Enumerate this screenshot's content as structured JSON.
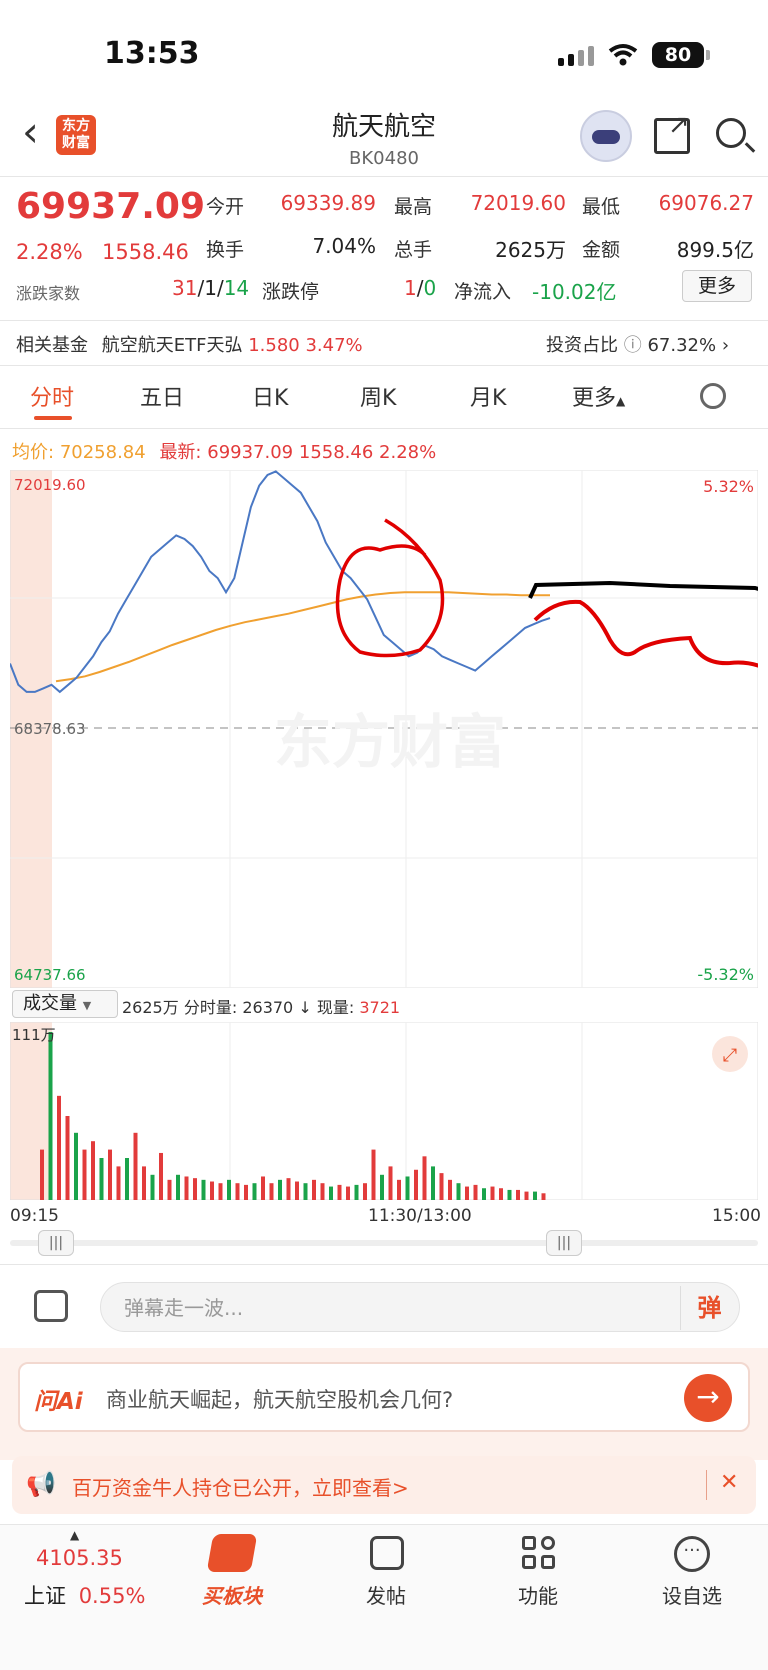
{
  "status": {
    "time": "13:53",
    "battery": "80"
  },
  "header": {
    "logo_text": "东方财富",
    "title": "航天航空",
    "code": "BK0480"
  },
  "quote": {
    "price": "69937.09",
    "pct": "2.28%",
    "chg": "1558.46",
    "open_label": "今开",
    "open": "69339.89",
    "high_label": "最高",
    "high": "72019.60",
    "low_label": "最低",
    "low": "69076.27",
    "turnover_label": "换手",
    "turnover": "7.04%",
    "volume_label": "总手",
    "volume": "2625万",
    "amount_label": "金额",
    "amount": "899.5亿",
    "advdec_label": "涨跌家数",
    "adv": "31",
    "sep1": "/",
    "flat": "1",
    "sep2": "/",
    "dec": "14",
    "limit_label": "涨跌停",
    "limit_up": "1",
    "limit_sep": "/",
    "limit_down": "0",
    "netflow_label": "净流入",
    "netflow": "-10.02亿",
    "more": "更多"
  },
  "fund": {
    "label": "相关基金",
    "name": "航空航天ETF天弘",
    "price": "1.580",
    "pct": "3.47%",
    "ratio_label": "投资占比",
    "ratio": "67.32%"
  },
  "tabs": [
    "分时",
    "五日",
    "日K",
    "周K",
    "月K",
    "更多"
  ],
  "legend": {
    "avg_label": "均价:",
    "avg": "70258.84",
    "last_label": "最新:",
    "last": "69937.09",
    "last_chg": "1558.46",
    "last_pct": "2.28%"
  },
  "chart_data": {
    "type": "line",
    "y_top": "72019.60",
    "y_mid": "68378.63",
    "y_bottom": "64737.66",
    "pct_top": "5.32%",
    "pct_bottom": "-5.32%",
    "ylim": [
      64737.66,
      72019.6
    ],
    "series": [
      {
        "values": [
          69300,
          69000,
          68900,
          68900,
          68950,
          69000,
          68900,
          69000,
          69100,
          69250,
          69400,
          69600,
          69750,
          70000,
          70200,
          70400,
          70600,
          70800,
          70900,
          71000,
          71100,
          71050,
          70950,
          70800,
          70600,
          70500,
          70300,
          70500,
          71000,
          71500,
          71800,
          71950,
          72000,
          71900,
          71800,
          71700,
          71500,
          71300,
          71000,
          70800,
          70600,
          70500,
          70350,
          70200,
          69950,
          69700,
          69600,
          69500,
          69400,
          69450,
          69550,
          69500,
          69400,
          69350,
          69300,
          69250,
          69200,
          69300,
          69400,
          69500,
          69600,
          69700,
          69800,
          69850,
          69900,
          69937
        ]
      },
      {
        "values": [
          69050,
          69080,
          69120,
          69180,
          69250,
          69320,
          69400,
          69480,
          69560,
          69630,
          69700,
          69770,
          69830,
          69880,
          69920,
          69960,
          70000,
          70050,
          70100,
          70150,
          70200,
          70240,
          70270,
          70290,
          70300,
          70300,
          70300,
          70300,
          70290,
          70280,
          70270,
          70270,
          70260,
          70260,
          70259
        ]
      }
    ]
  },
  "volume": {
    "selector": "成交量",
    "total": "2625万",
    "minute_label": "分时量:",
    "minute": "26370",
    "current_label": "现量:",
    "current": "3721",
    "max_label": "111万",
    "bars": [
      0.3,
      1.0,
      0.62,
      0.5,
      0.4,
      0.3,
      0.35,
      0.25,
      0.3,
      0.2,
      0.25,
      0.4,
      0.2,
      0.15,
      0.28,
      0.12,
      0.15,
      0.14,
      0.13,
      0.12,
      0.11,
      0.1,
      0.12,
      0.1,
      0.09,
      0.1,
      0.14,
      0.1,
      0.12,
      0.13,
      0.11,
      0.1,
      0.12,
      0.1,
      0.08,
      0.09,
      0.08,
      0.09,
      0.1,
      0.3,
      0.15,
      0.2,
      0.12,
      0.14,
      0.18,
      0.26,
      0.2,
      0.16,
      0.12,
      0.1,
      0.08,
      0.09,
      0.07,
      0.08,
      0.07,
      0.06,
      0.06,
      0.05,
      0.05,
      0.04
    ],
    "x_start": "09:15",
    "x_mid": "11:30/13:00",
    "x_end": "15:00"
  },
  "comment": {
    "placeholder": "弹幕走一波...",
    "danmu": "弹"
  },
  "ai": {
    "logo": "问Ai",
    "text": "商业航天崛起，航天航空股机会几何?"
  },
  "notice": {
    "text": "百万资金牛人持仓已公开，立即查看>"
  },
  "nav": {
    "index_value": "4105.35",
    "index_name": "上证",
    "index_pct": "0.55%",
    "items": [
      "买板块",
      "发帖",
      "功能",
      "设自选"
    ]
  },
  "colors": {
    "accent": "#e8502a",
    "up": "#e23b3b",
    "down": "#1aa34a",
    "line": "#4a78c4",
    "avg": "#f0a030"
  }
}
